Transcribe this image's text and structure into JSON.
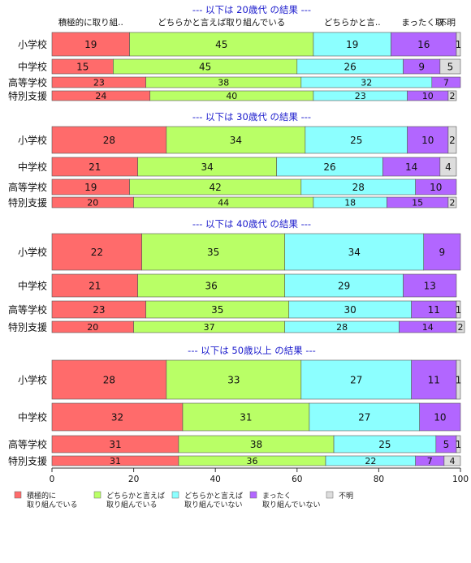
{
  "chart_data": {
    "type": "bar",
    "stacked": true,
    "orientation": "horizontal",
    "xlim": [
      0,
      100
    ],
    "x_ticks": [
      "0",
      "20",
      "40",
      "60",
      "80",
      "100"
    ],
    "category_header_labels": [
      "積極的に取り組..",
      "どちらかと言えば取り組んでいる",
      "どちらかと言..",
      "まったく取..",
      "不明"
    ],
    "colors": [
      "#ff6b6b",
      "#b9ff66",
      "#8cffff",
      "#b266ff",
      "#dddddd"
    ],
    "legend": [
      "積極的に\n取り組んでいる",
      "どちらかと言えば\n取り組んでいる",
      "どちらかと言えば\n取り組んでいない",
      "まったく\n取り組んでいない",
      "不明"
    ],
    "panels": [
      {
        "title": "--- 以下は 20歳代 の結果 ---",
        "categories": [
          "小学校",
          "中学校",
          "高等学校",
          "特別支援"
        ],
        "series": [
          {
            "name": "積極的に取り組んでいる",
            "values": [
              19,
              15,
              23,
              24
            ]
          },
          {
            "name": "どちらかと言えば取り組んでいる",
            "values": [
              45,
              45,
              38,
              40
            ]
          },
          {
            "name": "どちらかと言えば取り組んでいない",
            "values": [
              19,
              26,
              32,
              23
            ]
          },
          {
            "name": "まったく取り組んでいない",
            "values": [
              16,
              9,
              7,
              10
            ]
          },
          {
            "name": "不明",
            "values": [
              1,
              5,
              0,
              2
            ]
          }
        ]
      },
      {
        "title": "--- 以下は 30歳代 の結果 ---",
        "categories": [
          "小学校",
          "中学校",
          "高等学校",
          "特別支援"
        ],
        "series": [
          {
            "name": "積極的に取り組んでいる",
            "values": [
              28,
              21,
              19,
              20
            ]
          },
          {
            "name": "どちらかと言えば取り組んでいる",
            "values": [
              34,
              34,
              42,
              44
            ]
          },
          {
            "name": "どちらかと言えば取り組んでいない",
            "values": [
              25,
              26,
              28,
              18
            ]
          },
          {
            "name": "まったく取り組んでいない",
            "values": [
              10,
              14,
              10,
              15
            ]
          },
          {
            "name": "不明",
            "values": [
              2,
              4,
              0,
              2
            ]
          }
        ]
      },
      {
        "title": "--- 以下は 40歳代 の結果 ---",
        "categories": [
          "小学校",
          "中学校",
          "高等学校",
          "特別支援"
        ],
        "series": [
          {
            "name": "積極的に取り組んでいる",
            "values": [
              22,
              21,
              23,
              20
            ]
          },
          {
            "name": "どちらかと言えば取り組んでいる",
            "values": [
              35,
              36,
              35,
              37
            ]
          },
          {
            "name": "どちらかと言えば取り組んでいない",
            "values": [
              34,
              29,
              30,
              28
            ]
          },
          {
            "name": "まったく取り組んでいない",
            "values": [
              9,
              13,
              11,
              14
            ]
          },
          {
            "name": "不明",
            "values": [
              0,
              0,
              1,
              2
            ]
          }
        ]
      },
      {
        "title": "--- 以下は 50歳以上 の結果 ---",
        "categories": [
          "小学校",
          "中学校",
          "高等学校",
          "特別支援"
        ],
        "series": [
          {
            "name": "積極的に取り組んでいる",
            "values": [
              28,
              32,
              31,
              31
            ]
          },
          {
            "name": "どちらかと言えば取り組んでいる",
            "values": [
              33,
              31,
              38,
              36
            ]
          },
          {
            "name": "どちらかと言えば取り組んでいない",
            "values": [
              27,
              27,
              25,
              22
            ]
          },
          {
            "name": "まったく取り組んでいない",
            "values": [
              11,
              10,
              5,
              7
            ]
          },
          {
            "name": "不明",
            "values": [
              1,
              0,
              1,
              4
            ]
          }
        ]
      }
    ]
  }
}
